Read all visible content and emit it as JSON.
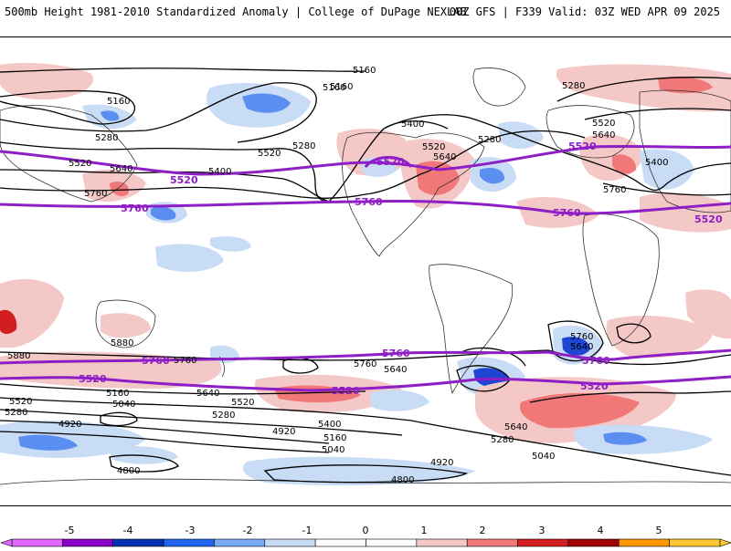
{
  "header": {
    "title_left": "500mb Height 1981-2010 Standardized Anomaly | College of DuPage NEXLAB",
    "title_right": "00Z GFS | F339 Valid: 03Z WED APR 09 2025"
  },
  "colors": {
    "purple_contour": "#8e1ec6",
    "black_contour": "#000000",
    "anom_neg1": "#c8dcf5",
    "anom_neg2": "#5a8ef0",
    "anom_neg3": "#1e46d2",
    "anom_pos1": "#f5c8c8",
    "anom_pos2": "#f07878",
    "anom_pos3": "#d21e1e"
  },
  "colorbar": {
    "ticks": [
      "-5",
      "-4",
      "-3",
      "-2",
      "-1",
      "0",
      "1",
      "2",
      "3",
      "4",
      "5"
    ],
    "segments": [
      {
        "color": "#e066ff"
      },
      {
        "color": "#8a00c8"
      },
      {
        "color": "#0032b4"
      },
      {
        "color": "#1e64f0"
      },
      {
        "color": "#78aaf5"
      },
      {
        "color": "#c8dcf5"
      },
      {
        "color": "#ffffff"
      },
      {
        "color": "#ffffff"
      },
      {
        "color": "#f5c8c8"
      },
      {
        "color": "#f07878"
      },
      {
        "color": "#d21e1e"
      },
      {
        "color": "#a00000"
      },
      {
        "color": "#ff9600"
      },
      {
        "color": "#ffc832"
      }
    ]
  },
  "contour_labels": {
    "black": [
      "5160",
      "5160",
      "5160",
      "5280",
      "5520",
      "5640",
      "5760",
      "5400",
      "5520",
      "5280",
      "5160",
      "5400",
      "5520",
      "5640",
      "5280",
      "5280",
      "5520",
      "5640",
      "5400",
      "5760",
      "5880",
      "5880",
      "5760",
      "5760",
      "5640",
      "5640",
      "5640",
      "5520",
      "5520",
      "5280",
      "5160",
      "5040",
      "5400",
      "5280",
      "5160",
      "4920",
      "4800",
      "4920",
      "4800",
      "5040",
      "4920",
      "5040",
      "5760",
      "5640",
      "5280"
    ],
    "purple": [
      "5520",
      "5520",
      "5760",
      "5520",
      "5760",
      "5520",
      "5760",
      "5760",
      "5520",
      "5760",
      "5520",
      "5520",
      "5760"
    ]
  }
}
